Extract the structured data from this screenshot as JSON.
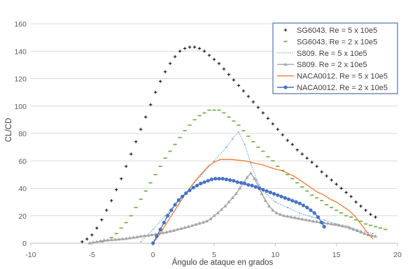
{
  "chart_data": {
    "type": "scatter",
    "xlabel": "Ángulo de ataque en grados",
    "ylabel": "CL/CD",
    "xlim": [
      -10,
      20
    ],
    "ylim": [
      0,
      160
    ],
    "x_ticks": [
      "-10",
      "-5",
      "0",
      "5",
      "10",
      "15",
      "20"
    ],
    "y_ticks": [
      "0",
      "20",
      "40",
      "60",
      "80",
      "100",
      "120",
      "140",
      "160"
    ],
    "grid": "horizontal",
    "legend_position": "top-right",
    "series": [
      {
        "name": "SG6043. Re = 5 x 10e5",
        "color": "#000000",
        "marker": "plus",
        "x": [
          -5.8,
          -5.4,
          -5.0,
          -4.6,
          -4.2,
          -3.8,
          -3.4,
          -3.0,
          -2.6,
          -2.2,
          -1.8,
          -1.4,
          -1.0,
          -0.6,
          -0.2,
          0.2,
          0.6,
          1.0,
          1.4,
          1.8,
          2.2,
          2.6,
          3.0,
          3.4,
          3.8,
          4.2,
          4.6,
          5.0,
          5.4,
          5.8,
          6.2,
          6.6,
          7.0,
          7.4,
          7.8,
          8.2,
          8.6,
          9.0,
          9.4,
          9.8,
          10.2,
          10.6,
          11.0,
          11.4,
          11.8,
          12.2,
          12.6,
          13.0,
          13.4,
          13.8,
          14.2,
          14.6,
          15.0,
          15.4,
          15.8,
          16.2,
          16.6,
          17.0,
          17.4,
          17.8,
          18.2
        ],
        "y": [
          1,
          3,
          6,
          11,
          17,
          24,
          31,
          39,
          47,
          56,
          65,
          74,
          83,
          92,
          101,
          110,
          118,
          125,
          131,
          136,
          140,
          142,
          143,
          143,
          142,
          140,
          137,
          134,
          131,
          127,
          123,
          119,
          115,
          111,
          107,
          103,
          99,
          95,
          91,
          87,
          83,
          79,
          75,
          72,
          68,
          65,
          62,
          59,
          56,
          52,
          49,
          46,
          43,
          40,
          37,
          34,
          30,
          27,
          24,
          21,
          19
        ]
      },
      {
        "name": "SG6043. Re = 2 x 10e5",
        "color": "#70ad47",
        "marker": "dash",
        "x": [
          -4.2,
          -3.8,
          -3.4,
          -3.0,
          -2.6,
          -2.2,
          -1.8,
          -1.4,
          -1.0,
          -0.6,
          -0.2,
          0.2,
          0.6,
          1.0,
          1.4,
          1.8,
          2.2,
          2.6,
          3.0,
          3.4,
          3.8,
          4.2,
          4.6,
          5.0,
          5.4,
          5.8,
          6.2,
          6.6,
          7.0,
          7.4,
          7.8,
          8.2,
          8.6,
          9.0,
          9.4,
          9.8,
          10.2,
          10.6,
          11.0,
          11.4,
          11.8,
          12.2,
          12.6,
          13.0,
          13.4,
          13.8,
          14.2,
          14.6,
          15.0,
          15.4,
          15.8,
          16.2,
          16.6,
          17.0,
          17.4,
          17.8,
          18.2,
          18.6,
          19.0
        ],
        "y": [
          1,
          2,
          4,
          7,
          11,
          15,
          20,
          26,
          32,
          38,
          44,
          50,
          56,
          62,
          67,
          72,
          77,
          82,
          86,
          90,
          93,
          95,
          97,
          97,
          97,
          95,
          92,
          89,
          86,
          82,
          78,
          74,
          70,
          67,
          63,
          60,
          56,
          53,
          50,
          47,
          44,
          41,
          38,
          35,
          33,
          31,
          28,
          26,
          24,
          22,
          20,
          19,
          17,
          16,
          14,
          13,
          12,
          11,
          10
        ]
      },
      {
        "name": "S809. Re = 5 x 10e5",
        "color": "#5b9bd5",
        "marker": "dot",
        "x": [
          -1,
          0,
          1,
          2,
          3,
          4,
          5,
          6,
          6.5,
          7,
          7.5,
          8,
          8.5,
          9,
          10,
          11,
          12,
          13,
          14,
          15,
          16,
          17,
          18
        ],
        "y": [
          1,
          10,
          20,
          30,
          40,
          50,
          60,
          70,
          76,
          81,
          72,
          58,
          46,
          38,
          30,
          26,
          22,
          19,
          17,
          14,
          12,
          9,
          7
        ]
      },
      {
        "name": "S809. Re = 2 x 10e5",
        "color": "#a5a5a5",
        "marker": "triangle",
        "x": [
          -5.2,
          -4.9,
          -4.6,
          -4.3,
          -4.0,
          -3.7,
          -3.4,
          -3.1,
          -2.8,
          -2.5,
          -2.2,
          -1.9,
          -1.6,
          -1.3,
          -1.0,
          -0.7,
          -0.4,
          -0.1,
          0.2,
          0.5,
          0.8,
          1.1,
          1.4,
          1.7,
          2.0,
          2.3,
          2.6,
          2.9,
          3.2,
          3.5,
          3.8,
          4.1,
          4.4,
          4.7,
          5.0,
          5.3,
          5.6,
          5.9,
          6.2,
          6.5,
          6.8,
          7.1,
          7.4,
          7.7,
          8.0,
          8.3,
          8.6,
          8.9,
          9.2,
          9.5,
          9.8,
          10.1,
          10.4,
          10.7,
          11.0,
          11.3,
          11.6,
          11.9,
          12.2,
          12.5,
          12.8,
          13.1,
          13.4,
          13.7,
          14.0,
          14.3,
          14.6,
          14.9,
          15.2,
          15.5,
          15.8,
          16.1,
          16.4,
          16.7,
          17.0,
          17.3,
          17.6,
          17.9,
          18.2
        ],
        "y": [
          0,
          0.5,
          1,
          1.5,
          2,
          2.2,
          2.4,
          2.6,
          2.8,
          3,
          3.3,
          3.7,
          4.1,
          4.5,
          5,
          5.3,
          5.6,
          6,
          6.5,
          7,
          7.5,
          8,
          8.6,
          9.2,
          9.9,
          10.6,
          11.3,
          12,
          12.8,
          13.6,
          14.4,
          15.2,
          16,
          17.6,
          20,
          22,
          24.5,
          27,
          30,
          33,
          36,
          40,
          44,
          48,
          51,
          47,
          42,
          36,
          31,
          27,
          24,
          22,
          21,
          20,
          19.5,
          19,
          18.5,
          18,
          17.5,
          17,
          16.5,
          16,
          15.6,
          15.2,
          14.8,
          14.4,
          14,
          13.5,
          13,
          12.5,
          12,
          11,
          10,
          9,
          8,
          7,
          6,
          5.5,
          5
        ]
      },
      {
        "name": "NACA0012. Re = 5 x 10e5",
        "color": "#ed7d31",
        "marker": "none",
        "x": [
          0,
          0.5,
          1,
          1.5,
          2,
          2.5,
          3,
          3.5,
          4,
          4.5,
          5,
          5.5,
          6,
          6.5,
          7,
          7.5,
          8,
          8.5,
          9,
          9.5,
          10,
          10.5,
          11,
          11.5,
          12,
          12.5,
          13,
          13.5,
          14,
          14.5,
          15,
          15.5,
          16,
          16.5,
          17,
          17.5,
          18
        ],
        "y": [
          0,
          6,
          13,
          20,
          27,
          34,
          40,
          46,
          51,
          56,
          59,
          61,
          61,
          61,
          60.5,
          60,
          59,
          58,
          57,
          55.5,
          54,
          53,
          51,
          49,
          46,
          43,
          40,
          37,
          35,
          32,
          30,
          27,
          24,
          20,
          14,
          8,
          3
        ]
      },
      {
        "name": "NACA0012. Re = 2 x 10e5",
        "color": "#4472c4",
        "marker": "circle",
        "x": [
          0,
          0.3,
          0.6,
          0.9,
          1.2,
          1.5,
          1.8,
          2.1,
          2.4,
          2.7,
          3.0,
          3.3,
          3.6,
          3.9,
          4.2,
          4.5,
          4.8,
          5.1,
          5.4,
          5.7,
          6.0,
          6.3,
          6.6,
          6.9,
          7.2,
          7.5,
          7.8,
          8.1,
          8.4,
          8.7,
          9.0,
          9.3,
          9.6,
          9.9,
          10.2,
          10.5,
          10.8,
          11.1,
          11.4,
          11.7,
          12.0,
          12.3,
          12.6,
          12.9,
          13.2,
          13.5,
          13.8,
          14.0
        ],
        "y": [
          0,
          5,
          10,
          15,
          20,
          24,
          28,
          31.5,
          34,
          36.5,
          38.5,
          40.5,
          42,
          43.5,
          44.5,
          45.5,
          46.5,
          47,
          47,
          47,
          46.5,
          46,
          45.5,
          44.5,
          44,
          43.5,
          42.5,
          42,
          41,
          40,
          39,
          38,
          37,
          36,
          35,
          34,
          33,
          32,
          31,
          30,
          29,
          27.5,
          26,
          24,
          22,
          19,
          15,
          12
        ]
      }
    ]
  }
}
